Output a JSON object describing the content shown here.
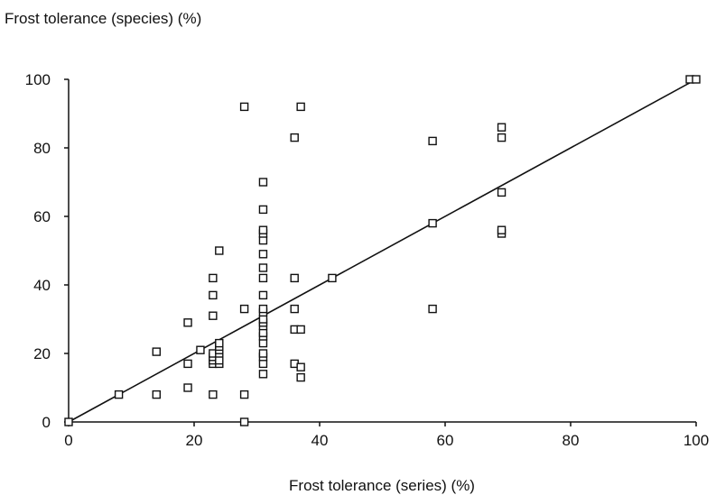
{
  "chart_data": {
    "type": "scatter",
    "title": "",
    "xlabel": "Frost tolerance (series) (%)",
    "ylabel": "Frost tolerance (species) (%)",
    "xlim": [
      0,
      100
    ],
    "ylim": [
      0,
      100
    ],
    "xticks": [
      "0",
      "20",
      "40",
      "60",
      "80",
      "100"
    ],
    "yticks": [
      "0",
      "20",
      "40",
      "60",
      "80",
      "100"
    ],
    "grid": false,
    "legend": "none",
    "colors": {
      "marker": "#111111",
      "line": "#111111",
      "axis": "#111111"
    },
    "series": [
      {
        "marker": "open-square",
        "points": [
          [
            0,
            0
          ],
          [
            8,
            8
          ],
          [
            14,
            8
          ],
          [
            14,
            20.5
          ],
          [
            19,
            10
          ],
          [
            19,
            17
          ],
          [
            19,
            29
          ],
          [
            21,
            21
          ],
          [
            23,
            8
          ],
          [
            23,
            17
          ],
          [
            23,
            18
          ],
          [
            23,
            19
          ],
          [
            23,
            20
          ],
          [
            23,
            31
          ],
          [
            23,
            37
          ],
          [
            23,
            42
          ],
          [
            24,
            17
          ],
          [
            24,
            18
          ],
          [
            24,
            20
          ],
          [
            24,
            21
          ],
          [
            24,
            22
          ],
          [
            24,
            23
          ],
          [
            24,
            50
          ],
          [
            28,
            0
          ],
          [
            28,
            8
          ],
          [
            28,
            33
          ],
          [
            28,
            92
          ],
          [
            31,
            14
          ],
          [
            31,
            17
          ],
          [
            31,
            19
          ],
          [
            31,
            20
          ],
          [
            31,
            23
          ],
          [
            31,
            25
          ],
          [
            31,
            26
          ],
          [
            31,
            28
          ],
          [
            31,
            29
          ],
          [
            31,
            30
          ],
          [
            31,
            32
          ],
          [
            31,
            33
          ],
          [
            31,
            37
          ],
          [
            31,
            42
          ],
          [
            31,
            45
          ],
          [
            31,
            49
          ],
          [
            31,
            53
          ],
          [
            31,
            55
          ],
          [
            31,
            56
          ],
          [
            31,
            62
          ],
          [
            31,
            70
          ],
          [
            36,
            17
          ],
          [
            36,
            27
          ],
          [
            36,
            33
          ],
          [
            36,
            42
          ],
          [
            36,
            83
          ],
          [
            37,
            13
          ],
          [
            37,
            16
          ],
          [
            37,
            27
          ],
          [
            37,
            92
          ],
          [
            42,
            42
          ],
          [
            58,
            33
          ],
          [
            58,
            58
          ],
          [
            58,
            82
          ],
          [
            69,
            55
          ],
          [
            69,
            56
          ],
          [
            69,
            67
          ],
          [
            69,
            83
          ],
          [
            69,
            86
          ],
          [
            99,
            100
          ],
          [
            100,
            100
          ]
        ]
      }
    ],
    "reference_line": {
      "type": "identity",
      "x": [
        0,
        100
      ],
      "y": [
        0,
        100
      ]
    }
  }
}
